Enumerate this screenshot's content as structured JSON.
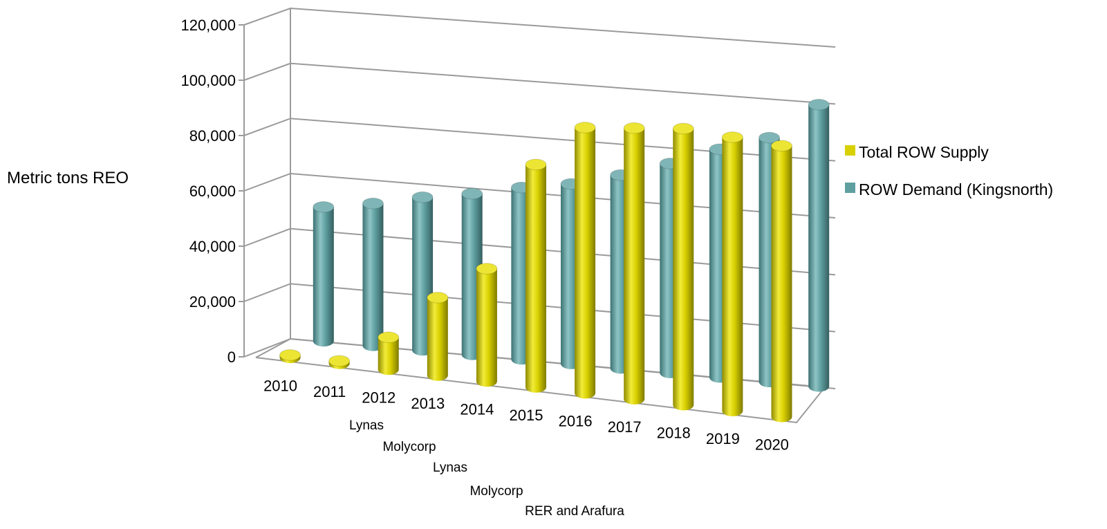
{
  "chart_data": {
    "type": "bar",
    "title": "",
    "ylabel": "Metric tons REO",
    "ylim": [
      0,
      120000
    ],
    "yticks": [
      "0",
      "20,000",
      "40,000",
      "60,000",
      "80,000",
      "100,000",
      "120,000"
    ],
    "yticks_values": [
      0,
      20000,
      40000,
      60000,
      80000,
      100000,
      120000
    ],
    "categories": [
      "2010",
      "2011",
      "2012",
      "2013",
      "2014",
      "2015",
      "2016",
      "2017",
      "2018",
      "2019",
      "2020"
    ],
    "series": [
      {
        "name": "Total ROW Supply",
        "color": "#d8d000",
        "values": [
          1000,
          1000,
          12000,
          29000,
          42000,
          83000,
          99000,
          101000,
          103000,
          102000,
          101000
        ]
      },
      {
        "name": "ROW Demand (Kingsnorth)",
        "color": "#5f9fa0",
        "values": [
          50000,
          53000,
          57000,
          60000,
          64000,
          67000,
          72000,
          78000,
          85000,
          91000,
          105000
        ]
      }
    ],
    "legend_position": "right",
    "grid": true,
    "annotations": [
      "Lynas",
      "Molycorp",
      "Lynas",
      "Molycorp",
      "RER and Arafura"
    ]
  }
}
